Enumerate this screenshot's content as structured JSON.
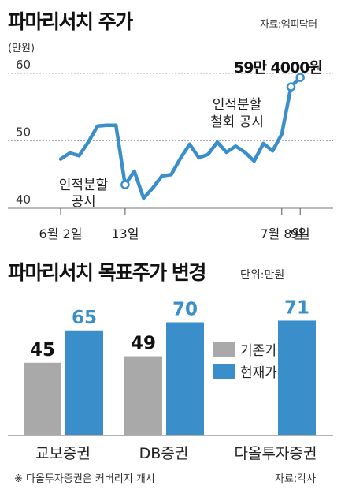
{
  "top_chart": {
    "title": "파마리서치 주가",
    "source": "자료:엠피닥터",
    "unit": "(만원)",
    "peak_label": "59만 4000원",
    "annotations": [
      "인적분할\n공시",
      "인적분할\n철회 공시"
    ],
    "colors": {
      "line": "#3a8fcb",
      "marker_fill": "#ffffff",
      "grid": "#999999"
    }
  },
  "bottom_chart": {
    "title": "파마리서치 목표주가 변경",
    "unit": "단위:만원",
    "source": "자료:각사",
    "footnote": "※ 다올투자증권은 커버리지 개시",
    "legend": [
      "기존가",
      "현재가"
    ],
    "colors": {
      "previous": "#a9a9a9",
      "current": "#3a8fcb"
    }
  },
  "chart_data": [
    {
      "type": "line",
      "title": "파마리서치 주가",
      "ylabel": "(만원)",
      "ylim": [
        40,
        62
      ],
      "yticks": [
        40,
        50,
        60
      ],
      "xtick_labels": [
        "6월 2일",
        "13일",
        "7월 8일",
        "9일"
      ],
      "x": [
        1,
        2,
        3,
        4,
        5,
        6,
        7,
        8,
        9,
        10,
        11,
        12,
        13,
        14,
        15,
        16,
        17,
        18,
        19,
        20,
        21,
        22,
        23,
        24,
        25,
        26,
        27
      ],
      "values": [
        47.3,
        48.2,
        47.8,
        49.8,
        52.2,
        52.3,
        52.3,
        43.5,
        45.5,
        41.5,
        43.0,
        44.8,
        45.0,
        47.4,
        49.5,
        47.5,
        48.0,
        49.8,
        48.3,
        49.2,
        48.3,
        47.0,
        49.6,
        48.5,
        51.0,
        58.0,
        59.4
      ],
      "markers": [
        {
          "x": 8,
          "value": 43.5,
          "label": "인적분할\n공시"
        },
        {
          "x": 26,
          "value": 58.0,
          "label": "인적분할\n철회 공시"
        },
        {
          "x": 27,
          "value": 59.4,
          "label": "59만 4000원"
        }
      ],
      "grid": true
    },
    {
      "type": "bar",
      "title": "파마리서치 목표주가 변경",
      "unit": "단위:만원",
      "categories": [
        "교보증권",
        "DB증권",
        "다올투자증권"
      ],
      "series": [
        {
          "name": "기존가",
          "values": [
            45,
            49,
            null
          ]
        },
        {
          "name": "현재가",
          "values": [
            65,
            70,
            71
          ]
        }
      ]
    }
  ]
}
